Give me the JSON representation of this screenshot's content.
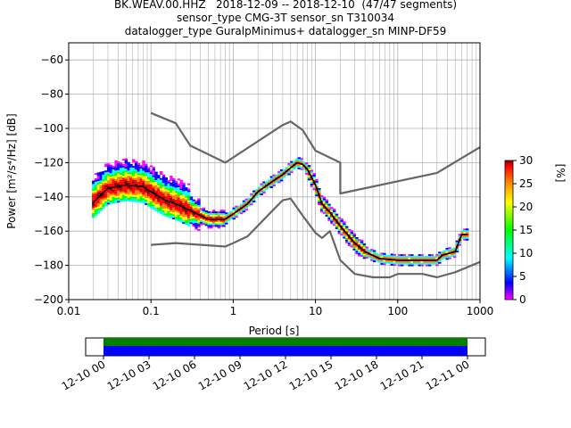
{
  "header": {
    "line1": "BK.WEAV.00.HHZ   2018-12-09 -- 2018-12-10  (47/47 segments)",
    "line2": "sensor_type CMG-3T sensor_sn T310034",
    "line3": "datalogger_type GuralpMinimus+ datalogger_sn MINP-DF59"
  },
  "chart_data": [
    {
      "type": "heatmap",
      "title": "",
      "xlabel": "Period [s]",
      "ylabel": "Power [m²/s⁴/Hz] [dB]",
      "x_scale": "log",
      "xlim": [
        0.01,
        1000
      ],
      "ylim": [
        -200,
        -50
      ],
      "x_ticks": [
        0.01,
        0.1,
        1,
        10,
        100,
        1000
      ],
      "x_tick_labels": [
        "0.01",
        "0.1",
        "1",
        "10",
        "100",
        "1000"
      ],
      "y_ticks": [
        -200,
        -180,
        -160,
        -140,
        -120,
        -100,
        -80,
        -60
      ],
      "y_tick_labels": [
        "−200",
        "−180",
        "−160",
        "−140",
        "−120",
        "−100",
        "−80",
        "−60"
      ],
      "grid": true,
      "colorbar": {
        "label": "[%]",
        "range": [
          0,
          30
        ],
        "ticks": [
          0,
          5,
          10,
          15,
          20,
          25,
          30
        ],
        "colormap": [
          "#ff00ff",
          "#0000ff",
          "#00ffff",
          "#00ff00",
          "#ffff00",
          "#ff8000",
          "#ff0000",
          "#800000"
        ]
      },
      "mode_curve": [
        [
          0.02,
          -143
        ],
        [
          0.03,
          -135
        ],
        [
          0.05,
          -133
        ],
        [
          0.08,
          -134
        ],
        [
          0.1,
          -137
        ],
        [
          0.15,
          -142
        ],
        [
          0.2,
          -144
        ],
        [
          0.3,
          -148
        ],
        [
          0.5,
          -153
        ],
        [
          0.8,
          -153
        ],
        [
          1,
          -150
        ],
        [
          1.5,
          -144
        ],
        [
          2,
          -137
        ],
        [
          3,
          -131
        ],
        [
          4,
          -127
        ],
        [
          5,
          -123
        ],
        [
          6,
          -120
        ],
        [
          7,
          -121
        ],
        [
          8,
          -124
        ],
        [
          10,
          -133
        ],
        [
          12,
          -144
        ],
        [
          15,
          -149
        ],
        [
          20,
          -157
        ],
        [
          30,
          -167
        ],
        [
          40,
          -172
        ],
        [
          60,
          -176
        ],
        [
          100,
          -177
        ],
        [
          200,
          -177
        ],
        [
          300,
          -177
        ],
        [
          350,
          -174
        ],
        [
          500,
          -172
        ],
        [
          600,
          -162
        ],
        [
          700,
          -162
        ]
      ],
      "noise_model_high": [
        [
          0.1,
          -91
        ],
        [
          0.2,
          -97
        ],
        [
          0.3,
          -110
        ],
        [
          0.8,
          -120
        ],
        [
          4,
          -98
        ],
        [
          5,
          -96
        ],
        [
          7,
          -101
        ],
        [
          10,
          -113
        ],
        [
          20,
          -120
        ],
        [
          20,
          -138
        ],
        [
          300,
          -126
        ],
        [
          1000,
          -111
        ]
      ],
      "noise_model_low": [
        [
          0.1,
          -168
        ],
        [
          0.2,
          -167
        ],
        [
          0.8,
          -169
        ],
        [
          1,
          -167
        ],
        [
          1.5,
          -163
        ],
        [
          3,
          -148
        ],
        [
          4,
          -142
        ],
        [
          5,
          -141
        ],
        [
          7,
          -151
        ],
        [
          10,
          -161
        ],
        [
          12,
          -164
        ],
        [
          15,
          -160
        ],
        [
          20,
          -177
        ],
        [
          30,
          -185
        ],
        [
          50,
          -187
        ],
        [
          80,
          -187
        ],
        [
          100,
          -185
        ],
        [
          200,
          -185
        ],
        [
          300,
          -187
        ],
        [
          500,
          -184
        ],
        [
          1000,
          -178
        ]
      ]
    },
    {
      "type": "bar",
      "title": "",
      "x_tick_labels": [
        "12-10 00",
        "12-10 03",
        "12-10 06",
        "12-10 09",
        "12-10 12",
        "12-10 15",
        "12-10 18",
        "12-10 21",
        "12-11 00"
      ],
      "series": [
        {
          "color": "#008000",
          "start": "12-10 00",
          "end": "12-11 00"
        },
        {
          "color": "#0000ff",
          "start": "12-10 00",
          "end": "12-11 00"
        }
      ]
    }
  ]
}
